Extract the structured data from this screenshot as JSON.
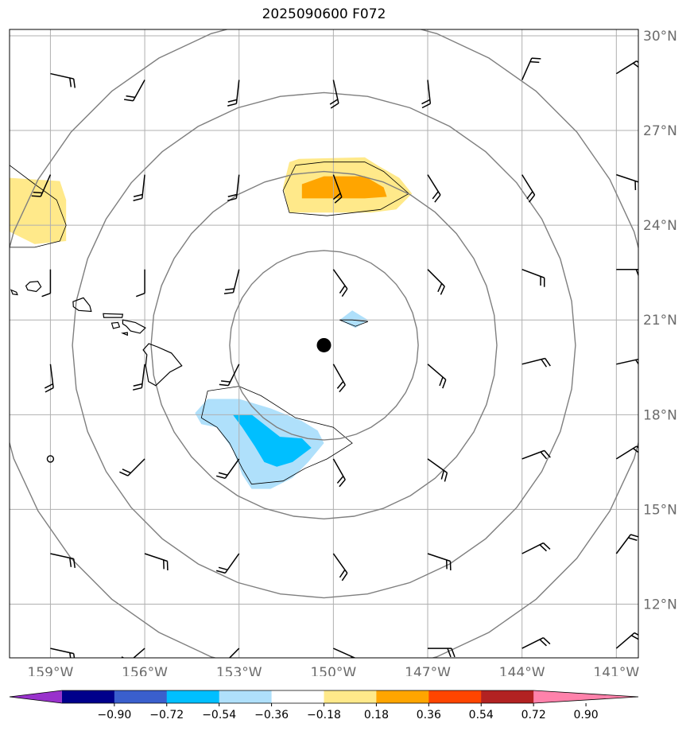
{
  "title": "2025090600 F072",
  "map": {
    "lon_range": [
      -160.3,
      -140.3
    ],
    "lat_range": [
      10.3,
      30.2
    ],
    "lon_ticks": [
      {
        "lon": -159,
        "label": "159°W"
      },
      {
        "lon": -156,
        "label": "156°W"
      },
      {
        "lon": -153,
        "label": "153°W"
      },
      {
        "lon": -150,
        "label": "150°W"
      },
      {
        "lon": -147,
        "label": "147°W"
      },
      {
        "lon": -144,
        "label": "144°W"
      },
      {
        "lon": -141,
        "label": "141°W"
      }
    ],
    "lat_ticks": [
      {
        "lat": 30,
        "label": "30°N"
      },
      {
        "lat": 27,
        "label": "27°N"
      },
      {
        "lat": 24,
        "label": "24°N"
      },
      {
        "lat": 21,
        "label": "21°N"
      },
      {
        "lat": 18,
        "label": "18°N"
      },
      {
        "lat": 15,
        "label": "15°N"
      },
      {
        "lat": 12,
        "label": "12°N"
      }
    ],
    "storm_center": {
      "lon": -150.3,
      "lat": 20.2
    },
    "range_rings_deg": [
      3,
      5.5,
      8,
      10.5
    ],
    "colors": {
      "grid": "#b0b0b0",
      "ring": "#7f7f7f",
      "axis_label": "#6b6b6b",
      "coast": "#000000"
    },
    "shaded_areas": [
      {
        "name": "positive-light",
        "color": "#ffe98a",
        "points": [
          [
            -160.3,
            25.5
          ],
          [
            -158.7,
            25.4
          ],
          [
            -158.5,
            24.8
          ],
          [
            -158.5,
            23.5
          ],
          [
            -159.5,
            23.4
          ],
          [
            -160.3,
            23.8
          ]
        ]
      },
      {
        "name": "positive-light",
        "color": "#ffe98a",
        "points": [
          [
            -151.4,
            26.0
          ],
          [
            -151.1,
            26.1
          ],
          [
            -149.0,
            26.15
          ],
          [
            -148.6,
            25.9
          ],
          [
            -147.9,
            25.5
          ],
          [
            -147.5,
            25.0
          ],
          [
            -148.0,
            24.5
          ],
          [
            -148.8,
            24.4
          ],
          [
            -150.2,
            24.4
          ],
          [
            -151.4,
            24.4
          ],
          [
            -151.6,
            25.2
          ]
        ]
      },
      {
        "name": "positive-dark",
        "color": "#ffa500",
        "points": [
          [
            -151.0,
            25.3
          ],
          [
            -150.3,
            25.55
          ],
          [
            -149.0,
            25.55
          ],
          [
            -148.4,
            25.2
          ],
          [
            -148.3,
            24.9
          ],
          [
            -149.0,
            24.85
          ],
          [
            -150.3,
            24.85
          ],
          [
            -151.0,
            24.85
          ]
        ]
      },
      {
        "name": "negative-light",
        "color": "#afe0fb",
        "points": [
          [
            -149.4,
            21.3
          ],
          [
            -148.9,
            21.0
          ],
          [
            -149.3,
            20.75
          ],
          [
            -149.8,
            21.0
          ]
        ]
      },
      {
        "name": "negative-light",
        "color": "#afe0fb",
        "points": [
          [
            -154.4,
            18.05
          ],
          [
            -154.0,
            18.5
          ],
          [
            -153.0,
            18.5
          ],
          [
            -152.0,
            18.2
          ],
          [
            -151.0,
            17.8
          ],
          [
            -150.5,
            17.5
          ],
          [
            -150.3,
            17.1
          ],
          [
            -150.8,
            16.5
          ],
          [
            -151.3,
            16.0
          ],
          [
            -152.0,
            15.65
          ],
          [
            -152.6,
            15.65
          ],
          [
            -152.9,
            16.1
          ],
          [
            -153.2,
            16.9
          ],
          [
            -153.7,
            17.6
          ],
          [
            -154.2,
            17.7
          ]
        ]
      },
      {
        "name": "negative-dark",
        "color": "#00bfff",
        "points": [
          [
            -153.2,
            18.0
          ],
          [
            -152.6,
            18.0
          ],
          [
            -151.7,
            17.3
          ],
          [
            -151.0,
            17.25
          ],
          [
            -150.7,
            16.95
          ],
          [
            -151.3,
            16.5
          ],
          [
            -151.8,
            16.35
          ],
          [
            -152.2,
            16.5
          ],
          [
            -152.5,
            17.0
          ],
          [
            -152.9,
            17.6
          ]
        ]
      }
    ],
    "contour_lines": [
      [
        [
          -160.3,
          25.9
        ],
        [
          -159.5,
          25.3
        ],
        [
          -158.8,
          24.8
        ],
        [
          -158.5,
          24.0
        ],
        [
          -158.7,
          23.5
        ],
        [
          -159.5,
          23.3
        ],
        [
          -160.3,
          23.3
        ]
      ],
      [
        [
          -151.2,
          25.9
        ],
        [
          -150.3,
          26.0
        ],
        [
          -149.0,
          26.0
        ],
        [
          -148.4,
          25.7
        ],
        [
          -147.6,
          25.0
        ],
        [
          -148.5,
          24.5
        ],
        [
          -150.2,
          24.3
        ],
        [
          -151.4,
          24.4
        ],
        [
          -151.6,
          25.1
        ],
        [
          -151.2,
          25.9
        ]
      ],
      [
        [
          -149.4,
          21.0
        ],
        [
          -148.9,
          20.95
        ],
        [
          -149.3,
          20.8
        ],
        [
          -149.8,
          21.0
        ],
        [
          -149.4,
          21.0
        ]
      ],
      [
        [
          -154.0,
          18.75
        ],
        [
          -153.0,
          18.9
        ],
        [
          -152.3,
          18.6
        ],
        [
          -151.2,
          17.9
        ],
        [
          -150.0,
          17.6
        ],
        [
          -149.4,
          17.1
        ],
        [
          -150.2,
          16.6
        ],
        [
          -150.9,
          16.3
        ],
        [
          -151.6,
          15.9
        ],
        [
          -152.6,
          15.8
        ],
        [
          -152.9,
          16.3
        ],
        [
          -153.3,
          17.1
        ],
        [
          -153.7,
          17.6
        ],
        [
          -154.2,
          17.9
        ],
        [
          -154.0,
          18.75
        ]
      ]
    ],
    "islands": [
      {
        "name": "kauai",
        "points": [
          [
            -159.65,
            22.2
          ],
          [
            -159.4,
            22.22
          ],
          [
            -159.3,
            22.05
          ],
          [
            -159.45,
            21.9
          ],
          [
            -159.72,
            21.95
          ],
          [
            -159.78,
            22.08
          ]
        ]
      },
      {
        "name": "niihau",
        "points": [
          [
            -160.25,
            21.95
          ],
          [
            -160.08,
            21.88
          ],
          [
            -160.05,
            21.8
          ],
          [
            -160.2,
            21.82
          ]
        ]
      },
      {
        "name": "oahu",
        "points": [
          [
            -158.28,
            21.58
          ],
          [
            -157.95,
            21.7
          ],
          [
            -157.75,
            21.45
          ],
          [
            -157.7,
            21.27
          ],
          [
            -158.1,
            21.3
          ],
          [
            -158.27,
            21.42
          ]
        ]
      },
      {
        "name": "molokai",
        "points": [
          [
            -157.32,
            21.2
          ],
          [
            -156.7,
            21.18
          ],
          [
            -156.72,
            21.08
          ],
          [
            -157.3,
            21.08
          ]
        ]
      },
      {
        "name": "lanai",
        "points": [
          [
            -157.05,
            20.9
          ],
          [
            -156.85,
            20.92
          ],
          [
            -156.8,
            20.78
          ],
          [
            -157.0,
            20.73
          ]
        ]
      },
      {
        "name": "maui",
        "points": [
          [
            -156.7,
            21.0
          ],
          [
            -156.45,
            20.95
          ],
          [
            -156.3,
            20.92
          ],
          [
            -155.98,
            20.75
          ],
          [
            -156.15,
            20.58
          ],
          [
            -156.45,
            20.65
          ],
          [
            -156.58,
            20.8
          ],
          [
            -156.7,
            20.88
          ]
        ]
      },
      {
        "name": "kahoolawe",
        "points": [
          [
            -156.7,
            20.58
          ],
          [
            -156.55,
            20.6
          ],
          [
            -156.55,
            20.52
          ]
        ]
      },
      {
        "name": "big-island",
        "points": [
          [
            -155.87,
            20.25
          ],
          [
            -155.6,
            20.15
          ],
          [
            -155.15,
            19.95
          ],
          [
            -154.82,
            19.55
          ],
          [
            -155.2,
            19.35
          ],
          [
            -155.65,
            18.92
          ],
          [
            -155.88,
            19.05
          ],
          [
            -155.97,
            19.55
          ],
          [
            -155.93,
            19.9
          ],
          [
            -156.05,
            20.05
          ]
        ]
      }
    ],
    "wind_barbs": [
      {
        "lon": -159.0,
        "lat": 28.8,
        "u": -9,
        "v": 2
      },
      {
        "lon": -156.0,
        "lat": 28.6,
        "u": 5,
        "v": 9
      },
      {
        "lon": -153.0,
        "lat": 28.6,
        "u": 1,
        "v": 9
      },
      {
        "lon": -150.0,
        "lat": 28.6,
        "u": -2,
        "v": 9
      },
      {
        "lon": -147.0,
        "lat": 28.6,
        "u": -1,
        "v": 9
      },
      {
        "lon": -144.0,
        "lat": 28.6,
        "u": -4,
        "v": -9
      },
      {
        "lon": -141.0,
        "lat": 28.8,
        "u": -8,
        "v": -5
      },
      {
        "lon": -159.0,
        "lat": 25.6,
        "u": 4,
        "v": 9
      },
      {
        "lon": -156.0,
        "lat": 25.6,
        "u": 1,
        "v": 9
      },
      {
        "lon": -153.0,
        "lat": 25.6,
        "u": 1,
        "v": 9
      },
      {
        "lon": -150.0,
        "lat": 25.6,
        "u": -3,
        "v": 8
      },
      {
        "lon": -147.0,
        "lat": 25.6,
        "u": -5,
        "v": 8
      },
      {
        "lon": -144.0,
        "lat": 25.6,
        "u": -5,
        "v": 8
      },
      {
        "lon": -141.0,
        "lat": 25.6,
        "u": -9,
        "v": 3
      },
      {
        "lon": -159.0,
        "lat": 22.6,
        "u": 0,
        "v": 8
      },
      {
        "lon": -156.0,
        "lat": 22.6,
        "u": 0,
        "v": 8
      },
      {
        "lon": -153.0,
        "lat": 22.6,
        "u": 2,
        "v": 8
      },
      {
        "lon": -150.0,
        "lat": 22.6,
        "u": -5,
        "v": 7
      },
      {
        "lon": -147.0,
        "lat": 22.6,
        "u": -6,
        "v": 6
      },
      {
        "lon": -144.0,
        "lat": 22.6,
        "u": -8,
        "v": 3
      },
      {
        "lon": -141.0,
        "lat": 22.6,
        "u": -9,
        "v": 0
      },
      {
        "lon": -159.0,
        "lat": 19.6,
        "u": -1,
        "v": 8
      },
      {
        "lon": -156.0,
        "lat": 19.6,
        "u": 1,
        "v": 8
      },
      {
        "lon": -153.0,
        "lat": 19.6,
        "u": 4,
        "v": 8
      },
      {
        "lon": -150.0,
        "lat": 19.6,
        "u": -4,
        "v": 7
      },
      {
        "lon": -147.0,
        "lat": 19.6,
        "u": -7,
        "v": 6
      },
      {
        "lon": -144.0,
        "lat": 19.6,
        "u": -8,
        "v": -2
      },
      {
        "lon": -141.0,
        "lat": 19.6,
        "u": -9,
        "v": -2
      },
      {
        "lon": -159.0,
        "lat": 16.6,
        "u": 0,
        "v": 0
      },
      {
        "lon": -156.0,
        "lat": 16.6,
        "u": 6,
        "v": 6
      },
      {
        "lon": -153.0,
        "lat": 16.6,
        "u": 5,
        "v": 7
      },
      {
        "lon": -150.0,
        "lat": 16.6,
        "u": -4,
        "v": 7
      },
      {
        "lon": -147.0,
        "lat": 16.6,
        "u": -7,
        "v": 5
      },
      {
        "lon": -144.0,
        "lat": 16.6,
        "u": -8,
        "v": -3
      },
      {
        "lon": -141.0,
        "lat": 16.6,
        "u": -8,
        "v": -5
      },
      {
        "lon": -159.0,
        "lat": 13.6,
        "u": -9,
        "v": 2
      },
      {
        "lon": -156.0,
        "lat": 13.6,
        "u": -9,
        "v": 3
      },
      {
        "lon": -153.0,
        "lat": 13.6,
        "u": 5,
        "v": 7
      },
      {
        "lon": -150.0,
        "lat": 13.6,
        "u": -5,
        "v": 7
      },
      {
        "lon": -147.0,
        "lat": 13.6,
        "u": -9,
        "v": 3
      },
      {
        "lon": -144.0,
        "lat": 13.6,
        "u": -8,
        "v": -4
      },
      {
        "lon": -141.0,
        "lat": 13.6,
        "u": -6,
        "v": -8
      },
      {
        "lon": -159.0,
        "lat": 10.6,
        "u": -9,
        "v": 2
      },
      {
        "lon": -156.0,
        "lat": 10.6,
        "u": 7,
        "v": 6
      },
      {
        "lon": -153.0,
        "lat": 10.6,
        "u": 6,
        "v": 6
      },
      {
        "lon": -150.0,
        "lat": 10.6,
        "u": -9,
        "v": 4
      },
      {
        "lon": -147.0,
        "lat": 10.6,
        "u": -9,
        "v": 0
      },
      {
        "lon": -144.0,
        "lat": 10.6,
        "u": -8,
        "v": -4
      },
      {
        "lon": -141.0,
        "lat": 10.6,
        "u": -7,
        "v": -6
      }
    ]
  },
  "colorbar": {
    "colors": [
      "#9932cc",
      "#00008b",
      "#3a5fcd",
      "#00bfff",
      "#afe0fb",
      "#ffffff",
      "#ffe98a",
      "#ffa500",
      "#ff4500",
      "#b22222",
      "#ff82ab"
    ],
    "ticks": [
      -0.9,
      -0.72,
      -0.54,
      -0.36,
      -0.18,
      0.18,
      0.36,
      0.54,
      0.72,
      0.9
    ],
    "tick_labels": [
      "−0.90",
      "−0.72",
      "−0.54",
      "−0.36",
      "−0.18",
      "0.18",
      "0.36",
      "0.54",
      "0.72",
      "0.90"
    ]
  }
}
